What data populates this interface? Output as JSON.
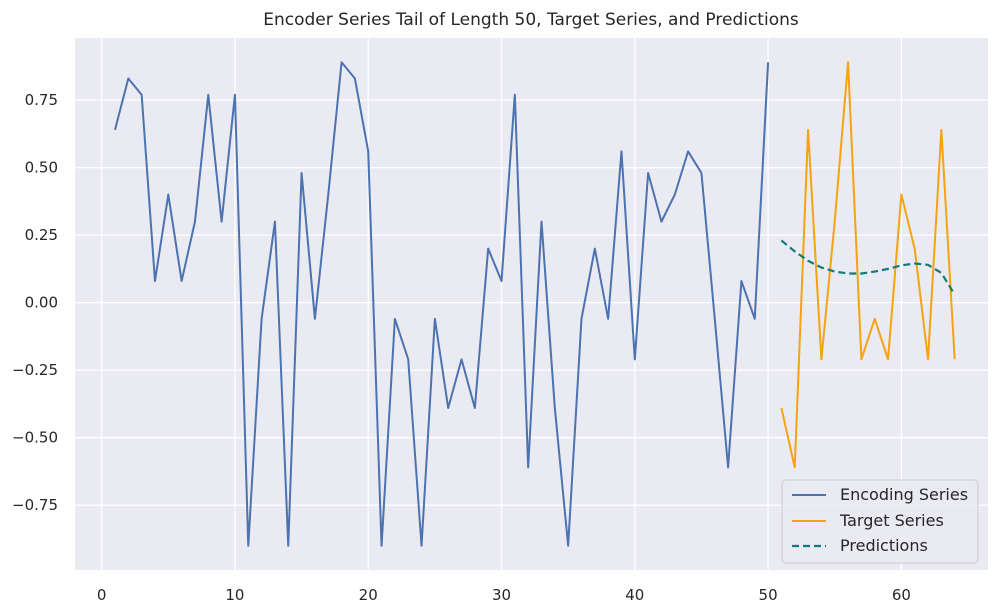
{
  "chart_data": {
    "type": "line",
    "title": "Encoder Series Tail of Length 50, Target Series, and Predictions",
    "xlabel": "",
    "ylabel": "",
    "xlim": [
      -2,
      66.5
    ],
    "ylim": [
      -0.99,
      0.98
    ],
    "x_ticks": [
      0,
      10,
      20,
      30,
      40,
      50,
      60
    ],
    "x_tick_labels": [
      "0",
      "10",
      "20",
      "30",
      "40",
      "50",
      "60"
    ],
    "y_ticks": [
      0.75,
      0.5,
      0.25,
      0.0,
      -0.25,
      -0.5,
      -0.75
    ],
    "y_tick_labels": [
      "0.75",
      "0.50",
      "0.25",
      "0.00",
      "−0.25",
      "−0.50",
      "−0.75"
    ],
    "grid": true,
    "legend_position": "lower-right",
    "colors": {
      "plot_background": "#eaeaf2",
      "grid": "#ffffff",
      "text": "#262626",
      "encoding": "#4c72b0",
      "target": "#f5a312",
      "predictions": "#117a7a"
    },
    "series": [
      {
        "name": "Encoding Series",
        "color": "#4c72b0",
        "style": "solid",
        "x": [
          1,
          2,
          3,
          4,
          5,
          6,
          7,
          8,
          9,
          10,
          11,
          12,
          13,
          14,
          15,
          16,
          17,
          18,
          19,
          20,
          21,
          22,
          23,
          24,
          25,
          26,
          27,
          28,
          29,
          30,
          31,
          32,
          33,
          34,
          35,
          36,
          37,
          38,
          39,
          40,
          41,
          42,
          43,
          44,
          45,
          46,
          47,
          48,
          49,
          50
        ],
        "values": [
          0.64,
          0.83,
          0.77,
          0.08,
          0.4,
          0.08,
          0.3,
          0.77,
          0.3,
          0.77,
          -0.9,
          -0.06,
          0.3,
          -0.9,
          0.48,
          -0.06,
          0.4,
          0.89,
          0.83,
          0.56,
          -0.9,
          -0.06,
          -0.21,
          -0.9,
          -0.06,
          -0.39,
          -0.21,
          -0.39,
          0.2,
          0.08,
          0.77,
          -0.61,
          0.3,
          -0.39,
          -0.9,
          -0.06,
          0.2,
          -0.06,
          0.56,
          -0.21,
          0.48,
          0.3,
          0.4,
          0.56,
          0.48,
          -0.06,
          -0.61,
          0.08,
          -0.06,
          0.89
        ]
      },
      {
        "name": "Target Series",
        "color": "#f5a312",
        "style": "solid",
        "x": [
          51,
          52,
          53,
          54,
          55,
          56,
          57,
          58,
          59,
          60,
          61,
          62,
          63,
          64
        ],
        "values": [
          -0.39,
          -0.61,
          0.64,
          -0.21,
          0.3,
          0.89,
          -0.21,
          -0.06,
          -0.21,
          0.4,
          0.2,
          -0.21,
          0.64,
          -0.21
        ]
      },
      {
        "name": "Predictions",
        "color": "#117a7a",
        "style": "dashed",
        "x": [
          51,
          52,
          53,
          54,
          55,
          56,
          57,
          58,
          59,
          60,
          61,
          62,
          63,
          64
        ],
        "values": [
          0.23,
          0.19,
          0.155,
          0.13,
          0.115,
          0.108,
          0.108,
          0.115,
          0.125,
          0.138,
          0.145,
          0.14,
          0.11,
          0.03
        ]
      }
    ]
  }
}
